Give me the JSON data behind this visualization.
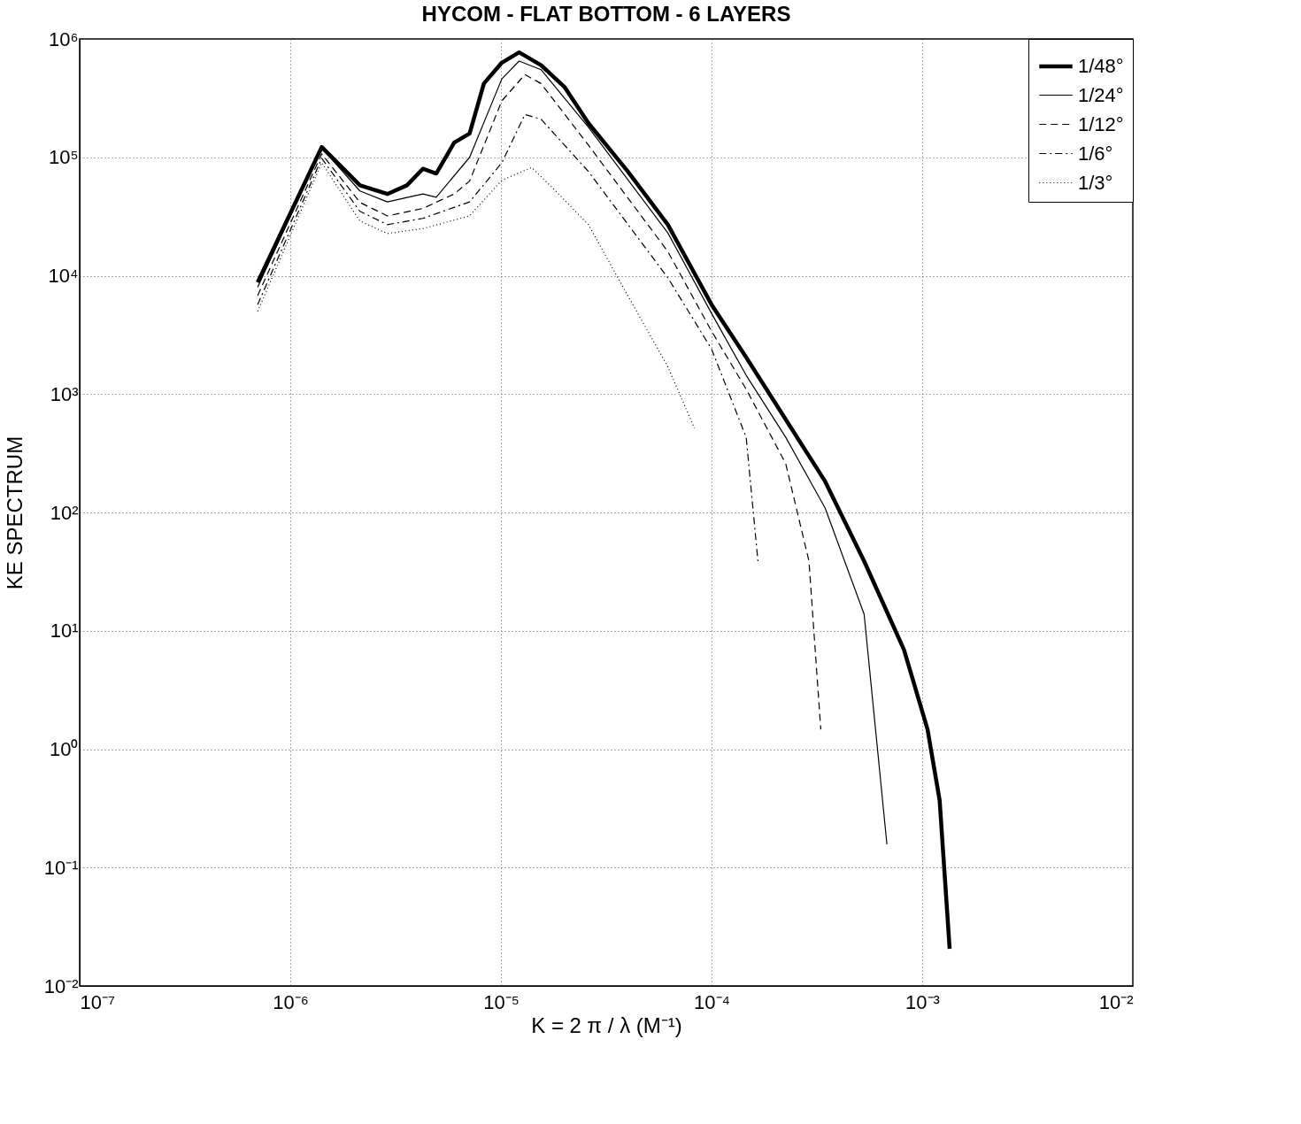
{
  "chart_data": {
    "type": "line",
    "title": "HYCOM - FLAT BOTTOM - 6 LAYERS",
    "xlabel": "K = 2 π / λ  (M⁻¹)",
    "ylabel": "KE SPECTRUM",
    "log": "xy",
    "grid": true,
    "legend": "top right",
    "xlim": [
      1e-07,
      0.01
    ],
    "ylim": [
      0.01,
      1000000.0
    ],
    "xticks": [
      {
        "value": 1e-07,
        "label": "10⁻⁷"
      },
      {
        "value": 1e-06,
        "label": "10⁻⁶"
      },
      {
        "value": 1e-05,
        "label": "10⁻⁵"
      },
      {
        "value": 0.0001,
        "label": "10⁻⁴"
      },
      {
        "value": 0.001,
        "label": "10⁻³"
      },
      {
        "value": 0.01,
        "label": "10⁻²"
      }
    ],
    "yticks": [
      {
        "value": 0.01,
        "label": "10⁻²"
      },
      {
        "value": 0.1,
        "label": "10⁻¹"
      },
      {
        "value": 1,
        "label": "10⁰"
      },
      {
        "value": 10,
        "label": "10¹"
      },
      {
        "value": 100,
        "label": "10²"
      },
      {
        "value": 1000,
        "label": "10³"
      },
      {
        "value": 10000,
        "label": "10⁴"
      },
      {
        "value": 100000,
        "label": "10⁵"
      },
      {
        "value": 1000000,
        "label": "10⁶"
      }
    ],
    "series": [
      {
        "name": "1/48°",
        "color": "#000000",
        "line_style": "solid",
        "x": [
          7e-07,
          1.41e-06,
          2.14e-06,
          2.89e-06,
          3.58e-06,
          4.26e-06,
          4.93e-06,
          6e-06,
          7.1e-06,
          8.3e-06,
          1.01e-05,
          1.22e-05,
          1.55e-05,
          2.01e-05,
          2.6e-05,
          4e-05,
          6.2e-05,
          0.0001,
          0.000146,
          0.000225,
          0.000346,
          0.00053,
          0.00082,
          0.00106,
          0.00121,
          0.00135
        ],
        "values": [
          8800,
          122000,
          58000,
          49000,
          58000,
          80000,
          73000,
          133000,
          159000,
          420000,
          630000,
          770000,
          600000,
          390000,
          195000,
          76000,
          27000,
          5700,
          2040,
          610,
          183,
          38.8,
          6.9,
          1.47,
          0.37,
          0.0206
        ]
      },
      {
        "name": "1/24°",
        "color": "#000000",
        "line_style": "solid",
        "x": [
          7e-07,
          1.41e-06,
          2.14e-06,
          2.89e-06,
          4.26e-06,
          4.93e-06,
          7.1e-06,
          1.01e-05,
          1.22e-05,
          1.55e-05,
          2.6e-05,
          6.2e-05,
          0.0001,
          0.000146,
          0.000225,
          0.000346,
          0.00053,
          0.00068
        ],
        "values": [
          8000,
          120000,
          52000,
          42000,
          49000,
          46000,
          100000,
          460000,
          650000,
          550000,
          180000,
          23000,
          4800,
          1440,
          431,
          109,
          13.8,
          0.157
        ]
      },
      {
        "name": "1/12°",
        "color": "#000000",
        "line_style": "dashed",
        "x": [
          7e-07,
          1.41e-06,
          2.14e-06,
          2.89e-06,
          4.26e-06,
          6e-06,
          7.1e-06,
          1.01e-05,
          1.3e-05,
          1.55e-05,
          2.6e-05,
          6.2e-05,
          0.0001,
          0.000146,
          0.000225,
          0.00029,
          0.00033
        ],
        "values": [
          6800,
          107000,
          41600,
          32000,
          37000,
          49000,
          63000,
          300000,
          500000,
          420000,
          127000,
          16000,
          3400,
          1100,
          258,
          38.8,
          1.47
        ]
      },
      {
        "name": "1/6°",
        "color": "#000000",
        "line_style": "dashdot",
        "x": [
          7e-07,
          1.41e-06,
          2.14e-06,
          2.89e-06,
          4.26e-06,
          7.1e-06,
          1.01e-05,
          1.3e-05,
          1.55e-05,
          2.6e-05,
          6.2e-05,
          0.0001,
          0.000146,
          0.000166
        ],
        "values": [
          5700,
          98000,
          35000,
          27000,
          30500,
          42000,
          90000,
          230000,
          210000,
          76000,
          9600,
          2400,
          431,
          38.8
        ]
      },
      {
        "name": "1/3°",
        "color": "#000000",
        "line_style": "dotted",
        "x": [
          7e-07,
          1.41e-06,
          2.14e-06,
          2.89e-06,
          4.26e-06,
          7.1e-06,
          1.01e-05,
          1.4e-05,
          1.8e-05,
          2.6e-05,
          4e-05,
          6.2e-05,
          8.3e-05
        ],
        "values": [
          5000,
          90000,
          29000,
          22700,
          25000,
          32000,
          64000,
          82000,
          53000,
          27000,
          6800,
          1700,
          513
        ]
      }
    ]
  }
}
